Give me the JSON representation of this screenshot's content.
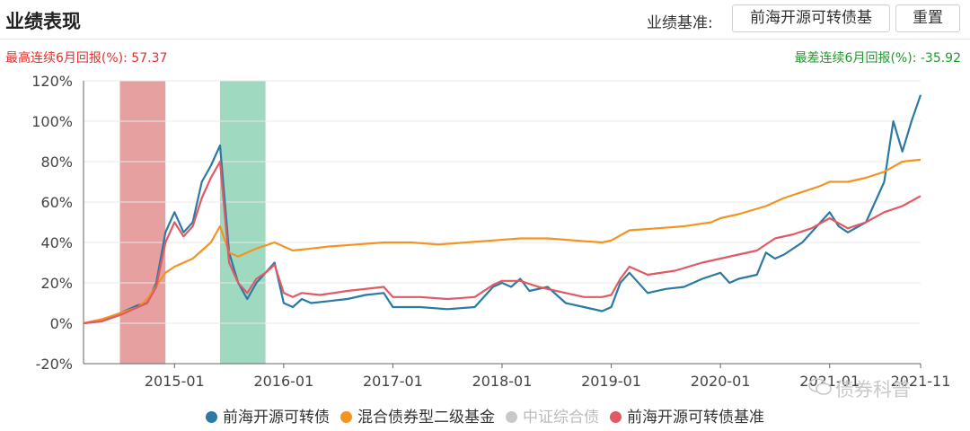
{
  "header": {
    "title": "业绩表现",
    "benchmark_label": "业绩基准:",
    "benchmark_button": "前海开源可转债基",
    "reset_button": "重置"
  },
  "stats": {
    "highest": "最高连续6月回报(%): 57.37",
    "lowest": "最差连续6月回报(%): -35.92"
  },
  "watermark": {
    "text": "债券科普",
    "icon": "wechat-icon"
  },
  "chart_data": {
    "type": "line",
    "title": "",
    "xlabel": "",
    "ylabel": "",
    "x_ticks": [
      "2015-01",
      "2016-01",
      "2017-01",
      "2018-01",
      "2019-01",
      "2020-01",
      "2021-01",
      "2021-11"
    ],
    "y_ticks": [
      "120%",
      "100%",
      "80%",
      "60%",
      "40%",
      "20%",
      "0%",
      "-20%"
    ],
    "x_range": [
      "2014-03",
      "2021-11"
    ],
    "ylim": [
      -20,
      120
    ],
    "grid": true,
    "legend_position": "bottom",
    "highlight_ranges": [
      {
        "kind": "highest-6m-return",
        "start": "2014-07",
        "end": "2014-12",
        "color": "#e6a0a0"
      },
      {
        "kind": "lowest-6m-return",
        "start": "2015-06",
        "end": "2015-11",
        "color": "#9fd9bf"
      }
    ],
    "series": [
      {
        "name": "前海开源可转债",
        "color": "#2a7aa3",
        "visible": true,
        "points": [
          [
            "2014-03",
            0
          ],
          [
            "2014-05",
            1
          ],
          [
            "2014-07",
            5
          ],
          [
            "2014-08",
            7
          ],
          [
            "2014-09",
            9
          ],
          [
            "2014-10",
            10
          ],
          [
            "2014-11",
            20
          ],
          [
            "2014-12",
            45
          ],
          [
            "2015-01",
            55
          ],
          [
            "2015-02",
            45
          ],
          [
            "2015-03",
            50
          ],
          [
            "2015-04",
            70
          ],
          [
            "2015-05",
            78
          ],
          [
            "2015-06",
            88
          ],
          [
            "2015-07",
            35
          ],
          [
            "2015-08",
            20
          ],
          [
            "2015-09",
            12
          ],
          [
            "2015-10",
            20
          ],
          [
            "2015-11",
            25
          ],
          [
            "2015-12",
            30
          ],
          [
            "2016-01",
            10
          ],
          [
            "2016-02",
            8
          ],
          [
            "2016-03",
            12
          ],
          [
            "2016-04",
            10
          ],
          [
            "2016-06",
            11
          ],
          [
            "2016-08",
            12
          ],
          [
            "2016-10",
            14
          ],
          [
            "2016-12",
            15
          ],
          [
            "2017-01",
            8
          ],
          [
            "2017-04",
            8
          ],
          [
            "2017-07",
            7
          ],
          [
            "2017-10",
            8
          ],
          [
            "2017-12",
            18
          ],
          [
            "2018-01",
            20
          ],
          [
            "2018-02",
            18
          ],
          [
            "2018-03",
            22
          ],
          [
            "2018-04",
            16
          ],
          [
            "2018-06",
            18
          ],
          [
            "2018-08",
            10
          ],
          [
            "2018-10",
            8
          ],
          [
            "2018-12",
            6
          ],
          [
            "2019-01",
            8
          ],
          [
            "2019-02",
            20
          ],
          [
            "2019-03",
            25
          ],
          [
            "2019-05",
            15
          ],
          [
            "2019-07",
            17
          ],
          [
            "2019-09",
            18
          ],
          [
            "2019-11",
            22
          ],
          [
            "2020-01",
            25
          ],
          [
            "2020-02",
            20
          ],
          [
            "2020-03",
            22
          ],
          [
            "2020-05",
            24
          ],
          [
            "2020-06",
            35
          ],
          [
            "2020-07",
            32
          ],
          [
            "2020-08",
            34
          ],
          [
            "2020-10",
            40
          ],
          [
            "2020-12",
            50
          ],
          [
            "2021-01",
            55
          ],
          [
            "2021-02",
            48
          ],
          [
            "2021-03",
            45
          ],
          [
            "2021-05",
            50
          ],
          [
            "2021-07",
            70
          ],
          [
            "2021-08",
            100
          ],
          [
            "2021-09",
            85
          ],
          [
            "2021-10",
            100
          ],
          [
            "2021-11",
            113
          ]
        ]
      },
      {
        "name": "混合债券型二级基金",
        "color": "#f39322",
        "visible": true,
        "points": [
          [
            "2014-03",
            0
          ],
          [
            "2014-05",
            2
          ],
          [
            "2014-07",
            5
          ],
          [
            "2014-09",
            8
          ],
          [
            "2014-10",
            12
          ],
          [
            "2014-12",
            25
          ],
          [
            "2015-01",
            28
          ],
          [
            "2015-03",
            32
          ],
          [
            "2015-05",
            40
          ],
          [
            "2015-06",
            48
          ],
          [
            "2015-07",
            35
          ],
          [
            "2015-08",
            33
          ],
          [
            "2015-10",
            37
          ],
          [
            "2015-12",
            40
          ],
          [
            "2016-01",
            38
          ],
          [
            "2016-02",
            36
          ],
          [
            "2016-04",
            37
          ],
          [
            "2016-06",
            38
          ],
          [
            "2016-09",
            39
          ],
          [
            "2016-12",
            40
          ],
          [
            "2017-03",
            40
          ],
          [
            "2017-06",
            39
          ],
          [
            "2017-09",
            40
          ],
          [
            "2017-12",
            41
          ],
          [
            "2018-03",
            42
          ],
          [
            "2018-06",
            42
          ],
          [
            "2018-09",
            41
          ],
          [
            "2018-12",
            40
          ],
          [
            "2019-01",
            41
          ],
          [
            "2019-03",
            46
          ],
          [
            "2019-06",
            47
          ],
          [
            "2019-09",
            48
          ],
          [
            "2019-12",
            50
          ],
          [
            "2020-01",
            52
          ],
          [
            "2020-03",
            54
          ],
          [
            "2020-06",
            58
          ],
          [
            "2020-08",
            62
          ],
          [
            "2020-10",
            65
          ],
          [
            "2020-12",
            68
          ],
          [
            "2021-01",
            70
          ],
          [
            "2021-03",
            70
          ],
          [
            "2021-05",
            72
          ],
          [
            "2021-07",
            75
          ],
          [
            "2021-09",
            80
          ],
          [
            "2021-11",
            81
          ]
        ]
      },
      {
        "name": "中证综合债",
        "color": "#c8c8c8",
        "visible": false,
        "points": []
      },
      {
        "name": "前海开源可转债基准",
        "color": "#e05a63",
        "visible": true,
        "points": [
          [
            "2014-03",
            0
          ],
          [
            "2014-05",
            1
          ],
          [
            "2014-07",
            4
          ],
          [
            "2014-08",
            6
          ],
          [
            "2014-09",
            8
          ],
          [
            "2014-10",
            10
          ],
          [
            "2014-11",
            18
          ],
          [
            "2014-12",
            40
          ],
          [
            "2015-01",
            50
          ],
          [
            "2015-02",
            43
          ],
          [
            "2015-03",
            48
          ],
          [
            "2015-04",
            62
          ],
          [
            "2015-05",
            72
          ],
          [
            "2015-06",
            80
          ],
          [
            "2015-07",
            30
          ],
          [
            "2015-08",
            20
          ],
          [
            "2015-09",
            15
          ],
          [
            "2015-10",
            22
          ],
          [
            "2015-11",
            25
          ],
          [
            "2015-12",
            29
          ],
          [
            "2016-01",
            15
          ],
          [
            "2016-02",
            13
          ],
          [
            "2016-03",
            15
          ],
          [
            "2016-05",
            14
          ],
          [
            "2016-08",
            16
          ],
          [
            "2016-12",
            18
          ],
          [
            "2017-01",
            13
          ],
          [
            "2017-04",
            13
          ],
          [
            "2017-07",
            12
          ],
          [
            "2017-10",
            13
          ],
          [
            "2017-12",
            19
          ],
          [
            "2018-01",
            21
          ],
          [
            "2018-03",
            21
          ],
          [
            "2018-05",
            18
          ],
          [
            "2018-08",
            15
          ],
          [
            "2018-10",
            13
          ],
          [
            "2018-12",
            13
          ],
          [
            "2019-01",
            14
          ],
          [
            "2019-02",
            22
          ],
          [
            "2019-03",
            28
          ],
          [
            "2019-05",
            24
          ],
          [
            "2019-08",
            26
          ],
          [
            "2019-11",
            30
          ],
          [
            "2020-01",
            32
          ],
          [
            "2020-03",
            34
          ],
          [
            "2020-05",
            36
          ],
          [
            "2020-07",
            42
          ],
          [
            "2020-09",
            44
          ],
          [
            "2020-11",
            47
          ],
          [
            "2021-01",
            52
          ],
          [
            "2021-03",
            47
          ],
          [
            "2021-05",
            50
          ],
          [
            "2021-07",
            55
          ],
          [
            "2021-09",
            58
          ],
          [
            "2021-11",
            63
          ]
        ]
      }
    ]
  }
}
